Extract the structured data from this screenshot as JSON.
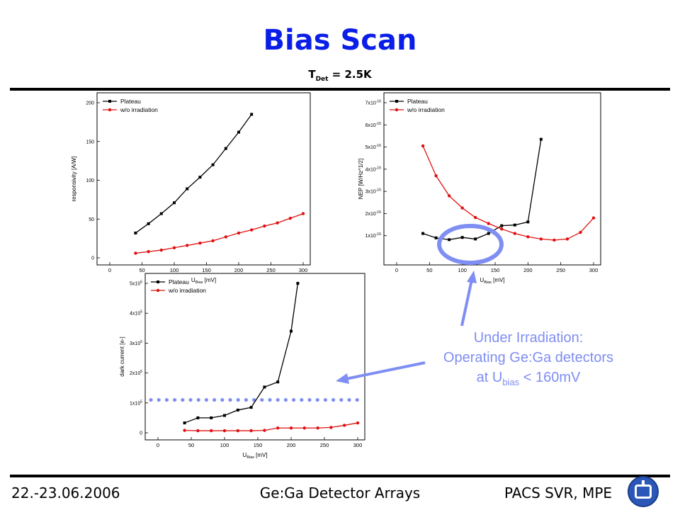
{
  "title": "Bias Scan",
  "subtitle": {
    "main": "T",
    "sub": "Det",
    "rest": " = 2.5K"
  },
  "footer": {
    "left": "22.-23.06.2006",
    "center": "Ge:Ga Detector Arrays",
    "right": "PACS SVR, MPE"
  },
  "callout": {
    "line1": "Under Irradiation:",
    "line2": "Operating Ge:Ga detectors",
    "line3_pre": "at U",
    "line3_sub": "bias",
    "line3_post": " < 160mV"
  },
  "colors": {
    "title": "#0a1ee8",
    "plateau": "#000000",
    "irradiation": "#e01010",
    "annotation": "#7f8ef2"
  },
  "logo": {
    "icon": "institute-logo-icon"
  },
  "chart_data": [
    {
      "type": "line",
      "xlabel": "U_Bias [mV]",
      "ylabel": "responsivity [A/W]",
      "xlim": [
        0,
        300
      ],
      "ylim": [
        0,
        200
      ],
      "xticks": [
        0,
        50,
        100,
        150,
        200,
        250,
        300
      ],
      "yticks": [
        0,
        50,
        100,
        150,
        200
      ],
      "ytick_labels": [
        "0",
        "50",
        "100",
        "150",
        "200"
      ],
      "legend": "top-left",
      "series": [
        {
          "name": "Plateau",
          "x": [
            40,
            60,
            80,
            100,
            120,
            140,
            160,
            180,
            200,
            220
          ],
          "y": [
            32,
            44,
            57,
            71,
            89,
            104,
            120,
            141,
            162,
            185
          ]
        },
        {
          "name": "w/o irradiation",
          "x": [
            40,
            60,
            80,
            100,
            120,
            140,
            160,
            180,
            200,
            220,
            240,
            260,
            280,
            300
          ],
          "y": [
            6,
            8,
            10,
            13,
            16,
            19,
            22,
            27,
            32,
            36,
            41,
            45,
            51,
            57
          ]
        }
      ]
    },
    {
      "type": "line",
      "xlabel": "U_Bias [mV]",
      "ylabel": "NEP [W/Hz^1/2]",
      "xlim": [
        0,
        300
      ],
      "ylim": [
        0,
        7e-16
      ],
      "xticks": [
        0,
        50,
        100,
        150,
        200,
        250,
        300
      ],
      "yticks": [
        1e-16,
        2e-16,
        3e-16,
        4e-16,
        5e-16,
        6e-16,
        7e-16
      ],
      "ytick_labels": [
        "1x10-16",
        "2x10-16",
        "3x10-16",
        "4x10-16",
        "5x10-16",
        "6x10-16",
        "7x10-16"
      ],
      "legend": "top-left",
      "series": [
        {
          "name": "Plateau",
          "x": [
            40,
            60,
            80,
            100,
            120,
            140,
            160,
            180,
            200,
            220
          ],
          "y": [
            1.1e-16,
            9e-17,
            8.2e-17,
            9.2e-17,
            8.5e-17,
            1.1e-16,
            1.45e-16,
            1.48e-16,
            1.62e-16,
            5.35e-16
          ]
        },
        {
          "name": "w/o irradiation",
          "x": [
            40,
            60,
            80,
            100,
            120,
            140,
            160,
            180,
            200,
            220,
            240,
            260,
            280,
            300
          ],
          "y": [
            5.05e-16,
            3.7e-16,
            2.8e-16,
            2.25e-16,
            1.82e-16,
            1.55e-16,
            1.3e-16,
            1.1e-16,
            9.5e-17,
            8.5e-17,
            8e-17,
            8.5e-17,
            1.15e-16,
            1.8e-16
          ]
        }
      ]
    },
    {
      "type": "line",
      "xlabel": "U_Bias [mV]",
      "ylabel": "dark current [e-]",
      "xlim": [
        0,
        300
      ],
      "ylim": [
        0,
        500000
      ],
      "xticks": [
        0,
        50,
        100,
        150,
        200,
        250,
        300
      ],
      "yticks": [
        0,
        100000,
        200000,
        300000,
        400000,
        500000
      ],
      "ytick_labels": [
        "0",
        "1x10^5",
        "2x10^5",
        "3x10^5",
        "4x10^5",
        "5x10^5"
      ],
      "legend": "top-left",
      "reference_level": 110000,
      "series": [
        {
          "name": "Plateau",
          "x": [
            40,
            60,
            80,
            100,
            120,
            140,
            160,
            180,
            200,
            210
          ],
          "y": [
            33000,
            50000,
            50000,
            58000,
            76000,
            85000,
            153000,
            170000,
            340000,
            500000
          ]
        },
        {
          "name": "w/o irradiation",
          "x": [
            40,
            60,
            80,
            100,
            120,
            140,
            160,
            180,
            200,
            220,
            240,
            260,
            280,
            300
          ],
          "y": [
            8000,
            7000,
            7000,
            7000,
            7000,
            7000,
            8000,
            16000,
            16000,
            16000,
            16000,
            18000,
            25000,
            33000
          ]
        }
      ]
    }
  ]
}
